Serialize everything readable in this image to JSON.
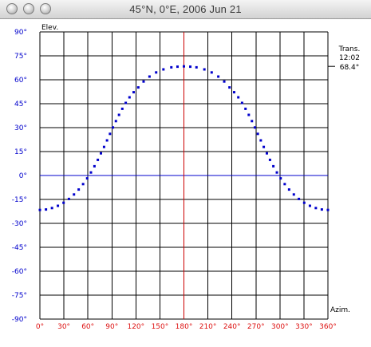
{
  "window": {
    "title": "45°N, 0°E, 2006 Jun 21"
  },
  "transit": {
    "label": "Trans.",
    "time": "12:02",
    "elevation": "68.4°",
    "value": 68.4
  },
  "colors": {
    "grid": "#000000",
    "y_ticks": "#0000cc",
    "x_ticks": "#dd1111",
    "horizon": "#0000cc",
    "meridian": "#cc0000",
    "points": "#0000cc"
  },
  "chart_data": {
    "type": "scatter",
    "title": "",
    "xlabel": "Azim.",
    "ylabel": "Elev.",
    "xlim": [
      0,
      360
    ],
    "ylim": [
      -90,
      90
    ],
    "x_ticks": [
      "0°",
      "30°",
      "60°",
      "90°",
      "120°",
      "150°",
      "180°",
      "210°",
      "240°",
      "270°",
      "300°",
      "330°",
      "360°"
    ],
    "y_ticks": [
      "90°",
      "75°",
      "60°",
      "45°",
      "30°",
      "15°",
      "0°",
      "-15°",
      "-30°",
      "-45°",
      "-60°",
      "-75°",
      "-90°"
    ],
    "grid": true,
    "reference_lines": {
      "horizontal": 0,
      "vertical": 180
    },
    "series": [
      {
        "points": [
          [
            0.0,
            -21.6
          ],
          [
            7.6,
            -21.3
          ],
          [
            15.1,
            -20.4
          ],
          [
            22.5,
            -19.0
          ],
          [
            29.6,
            -17.1
          ],
          [
            36.3,
            -14.7
          ],
          [
            42.6,
            -11.9
          ],
          [
            48.5,
            -8.8
          ],
          [
            54.0,
            -5.4
          ],
          [
            59.1,
            -1.8
          ],
          [
            63.8,
            1.9
          ],
          [
            68.2,
            5.8
          ],
          [
            72.4,
            9.8
          ],
          [
            76.3,
            13.9
          ],
          [
            80.2,
            17.9
          ],
          [
            83.9,
            22.0
          ],
          [
            87.6,
            26.1
          ],
          [
            91.3,
            30.1
          ],
          [
            95.0,
            34.1
          ],
          [
            98.9,
            38.0
          ],
          [
            103.0,
            41.8
          ],
          [
            107.3,
            45.5
          ],
          [
            112.0,
            49.0
          ],
          [
            117.2,
            52.2
          ],
          [
            123.0,
            55.2
          ],
          [
            129.6,
            58.9
          ],
          [
            137.0,
            62.0
          ],
          [
            145.3,
            64.6
          ],
          [
            154.4,
            66.5
          ],
          [
            164.3,
            67.8
          ],
          [
            172.0,
            68.2
          ],
          [
            180.0,
            68.4
          ],
          [
            188.0,
            68.2
          ],
          [
            195.7,
            67.8
          ],
          [
            205.6,
            66.5
          ],
          [
            214.7,
            64.6
          ],
          [
            223.0,
            62.0
          ],
          [
            230.4,
            58.9
          ],
          [
            237.0,
            55.2
          ],
          [
            242.8,
            52.2
          ],
          [
            248.0,
            49.0
          ],
          [
            252.7,
            45.5
          ],
          [
            257.0,
            41.8
          ],
          [
            261.1,
            38.0
          ],
          [
            265.0,
            34.1
          ],
          [
            268.7,
            30.1
          ],
          [
            272.4,
            26.1
          ],
          [
            276.1,
            22.0
          ],
          [
            279.8,
            17.9
          ],
          [
            283.7,
            13.9
          ],
          [
            287.6,
            9.8
          ],
          [
            291.8,
            5.8
          ],
          [
            296.2,
            1.9
          ],
          [
            300.9,
            -1.8
          ],
          [
            306.0,
            -5.4
          ],
          [
            311.5,
            -8.8
          ],
          [
            317.4,
            -11.9
          ],
          [
            323.7,
            -14.7
          ],
          [
            330.4,
            -17.1
          ],
          [
            337.5,
            -19.0
          ],
          [
            344.9,
            -20.4
          ],
          [
            352.4,
            -21.3
          ],
          [
            360.0,
            -21.6
          ]
        ]
      }
    ]
  }
}
